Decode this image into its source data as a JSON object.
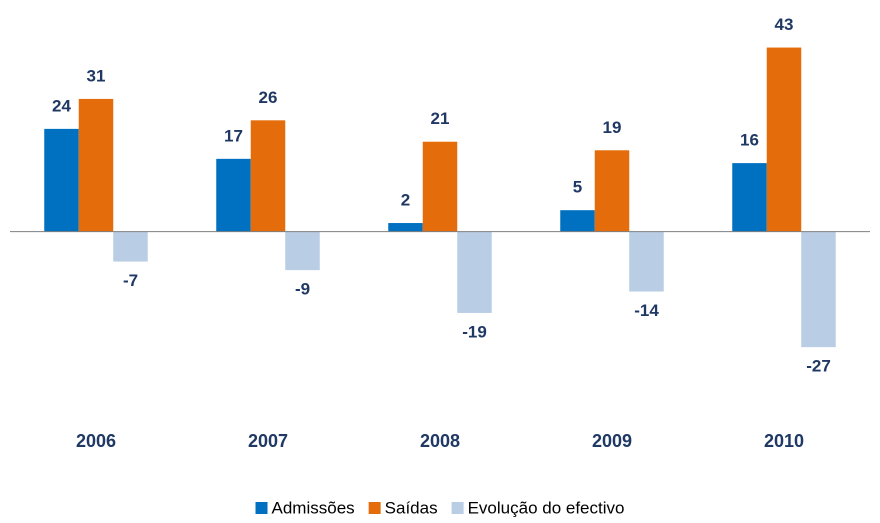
{
  "chart_data": {
    "type": "bar",
    "categories": [
      "2006",
      "2007",
      "2008",
      "2009",
      "2010"
    ],
    "series": [
      {
        "name": "Admissões",
        "color": "#0070c0",
        "values": [
          24,
          17,
          2,
          5,
          16
        ]
      },
      {
        "name": "Saídas",
        "color": "#e46c0a",
        "values": [
          31,
          26,
          21,
          19,
          43
        ]
      },
      {
        "name": "Evolução do efectivo",
        "color": "#b9cde5",
        "values": [
          -7,
          -9,
          -19,
          -14,
          -27
        ]
      }
    ],
    "ylim": [
      -30,
      45
    ],
    "legend": "bottom"
  }
}
